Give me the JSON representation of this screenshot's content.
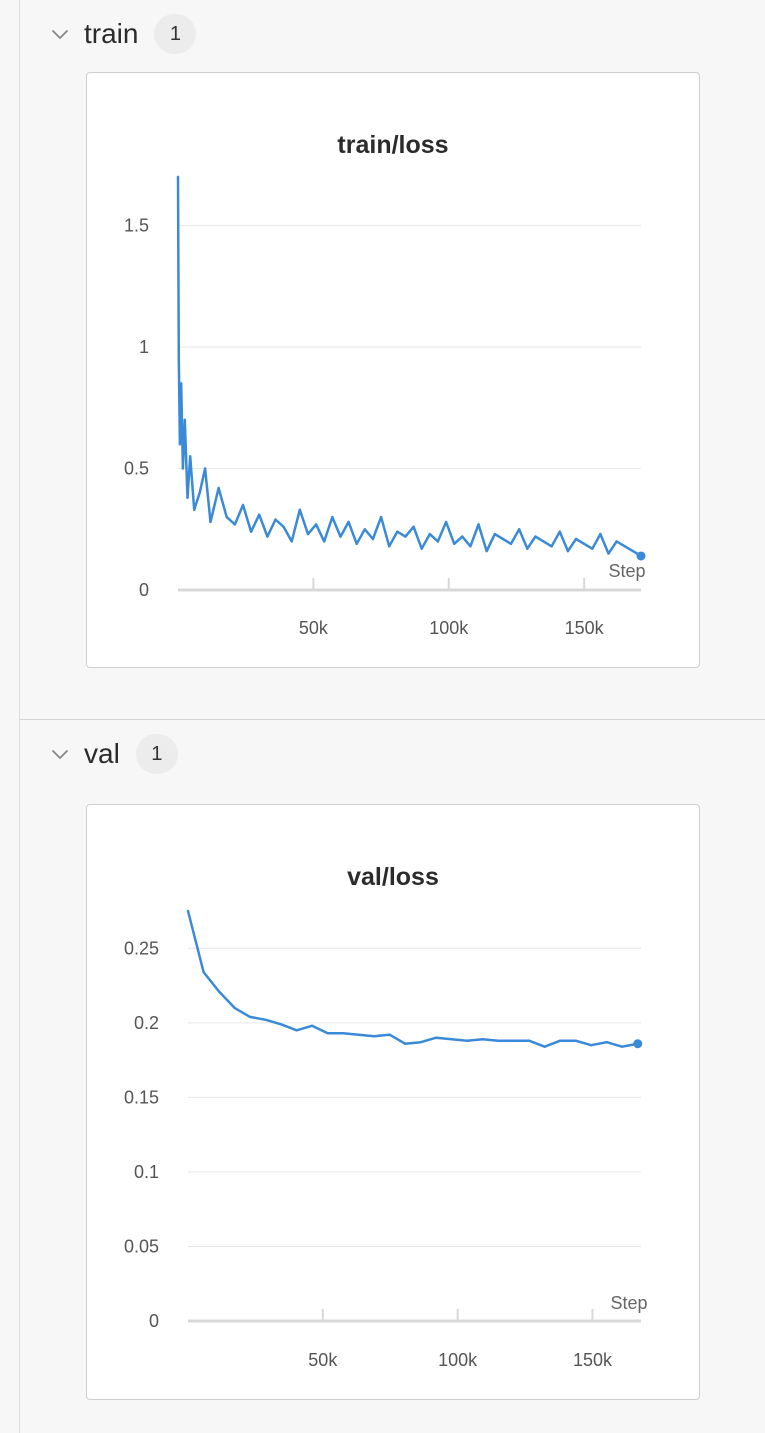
{
  "sections": [
    {
      "title": "train",
      "count": "1",
      "panel": {
        "title": "train/loss",
        "xlabel": "Step"
      }
    },
    {
      "title": "val",
      "count": "1",
      "panel": {
        "title": "val/loss",
        "xlabel": "Step"
      }
    }
  ],
  "colors": {
    "series": "#3a8ad8",
    "grid": "#e6e6e6",
    "axis": "#d8d8d8",
    "badge_bg": "#ececec"
  },
  "chart_data": [
    {
      "type": "line",
      "title": "train/loss",
      "xlabel": "Step",
      "ylabel": "",
      "xlim": [
        0,
        171000
      ],
      "ylim": [
        0,
        1.7
      ],
      "xticks": [
        50000,
        100000,
        150000
      ],
      "xtick_labels": [
        "50k",
        "100k",
        "150k"
      ],
      "yticks": [
        0,
        0.5,
        1,
        1.5
      ],
      "ytick_labels": [
        "0",
        "0.5",
        "1",
        "1.5"
      ],
      "grid": true,
      "series": [
        {
          "name": "",
          "x": [
            0,
            300,
            700,
            1200,
            1800,
            2500,
            3500,
            4500,
            6000,
            8000,
            10000,
            12000,
            15000,
            18000,
            21000,
            24000,
            27000,
            30000,
            33000,
            36000,
            39000,
            42000,
            45000,
            48000,
            51000,
            54000,
            57000,
            60000,
            63000,
            66000,
            69000,
            72000,
            75000,
            78000,
            81000,
            84000,
            87000,
            90000,
            93000,
            96000,
            99000,
            102000,
            105000,
            108000,
            111000,
            114000,
            117000,
            120000,
            123000,
            126000,
            129000,
            132000,
            135000,
            138000,
            141000,
            144000,
            147000,
            150000,
            153000,
            156000,
            159000,
            162000,
            165000,
            168000,
            171000
          ],
          "y": [
            1.7,
            0.95,
            0.6,
            0.85,
            0.5,
            0.7,
            0.38,
            0.55,
            0.33,
            0.4,
            0.5,
            0.28,
            0.42,
            0.3,
            0.27,
            0.35,
            0.24,
            0.31,
            0.22,
            0.29,
            0.26,
            0.2,
            0.33,
            0.23,
            0.27,
            0.2,
            0.3,
            0.22,
            0.28,
            0.19,
            0.25,
            0.21,
            0.3,
            0.18,
            0.24,
            0.22,
            0.26,
            0.17,
            0.23,
            0.2,
            0.28,
            0.19,
            0.22,
            0.18,
            0.27,
            0.16,
            0.23,
            0.21,
            0.19,
            0.25,
            0.17,
            0.22,
            0.2,
            0.18,
            0.24,
            0.16,
            0.21,
            0.19,
            0.17,
            0.23,
            0.15,
            0.2,
            0.18,
            0.16,
            0.14
          ]
        }
      ]
    },
    {
      "type": "line",
      "title": "val/loss",
      "xlabel": "Step",
      "ylabel": "",
      "xlim": [
        0,
        168000
      ],
      "ylim": [
        0,
        0.275
      ],
      "xticks": [
        50000,
        100000,
        150000
      ],
      "xtick_labels": [
        "50k",
        "100k",
        "150k"
      ],
      "yticks": [
        0,
        0.05,
        0.1,
        0.15,
        0.2,
        0.25
      ],
      "ytick_labels": [
        "0",
        "0.05",
        "0.1",
        "0.15",
        "0.2",
        "0.25"
      ],
      "grid": true,
      "series": [
        {
          "name": "",
          "x": [
            0,
            5800,
            11500,
            17300,
            23000,
            28800,
            34500,
            40300,
            46000,
            51800,
            57500,
            63300,
            69000,
            74800,
            80500,
            86300,
            92000,
            97800,
            103500,
            109300,
            115000,
            120800,
            126500,
            132300,
            138000,
            143800,
            149500,
            155300,
            161000,
            166800
          ],
          "y": [
            0.275,
            0.234,
            0.221,
            0.21,
            0.204,
            0.202,
            0.199,
            0.195,
            0.198,
            0.193,
            0.193,
            0.192,
            0.191,
            0.192,
            0.186,
            0.187,
            0.19,
            0.189,
            0.188,
            0.189,
            0.188,
            0.188,
            0.188,
            0.184,
            0.188,
            0.188,
            0.185,
            0.187,
            0.184,
            0.186
          ]
        }
      ]
    }
  ]
}
